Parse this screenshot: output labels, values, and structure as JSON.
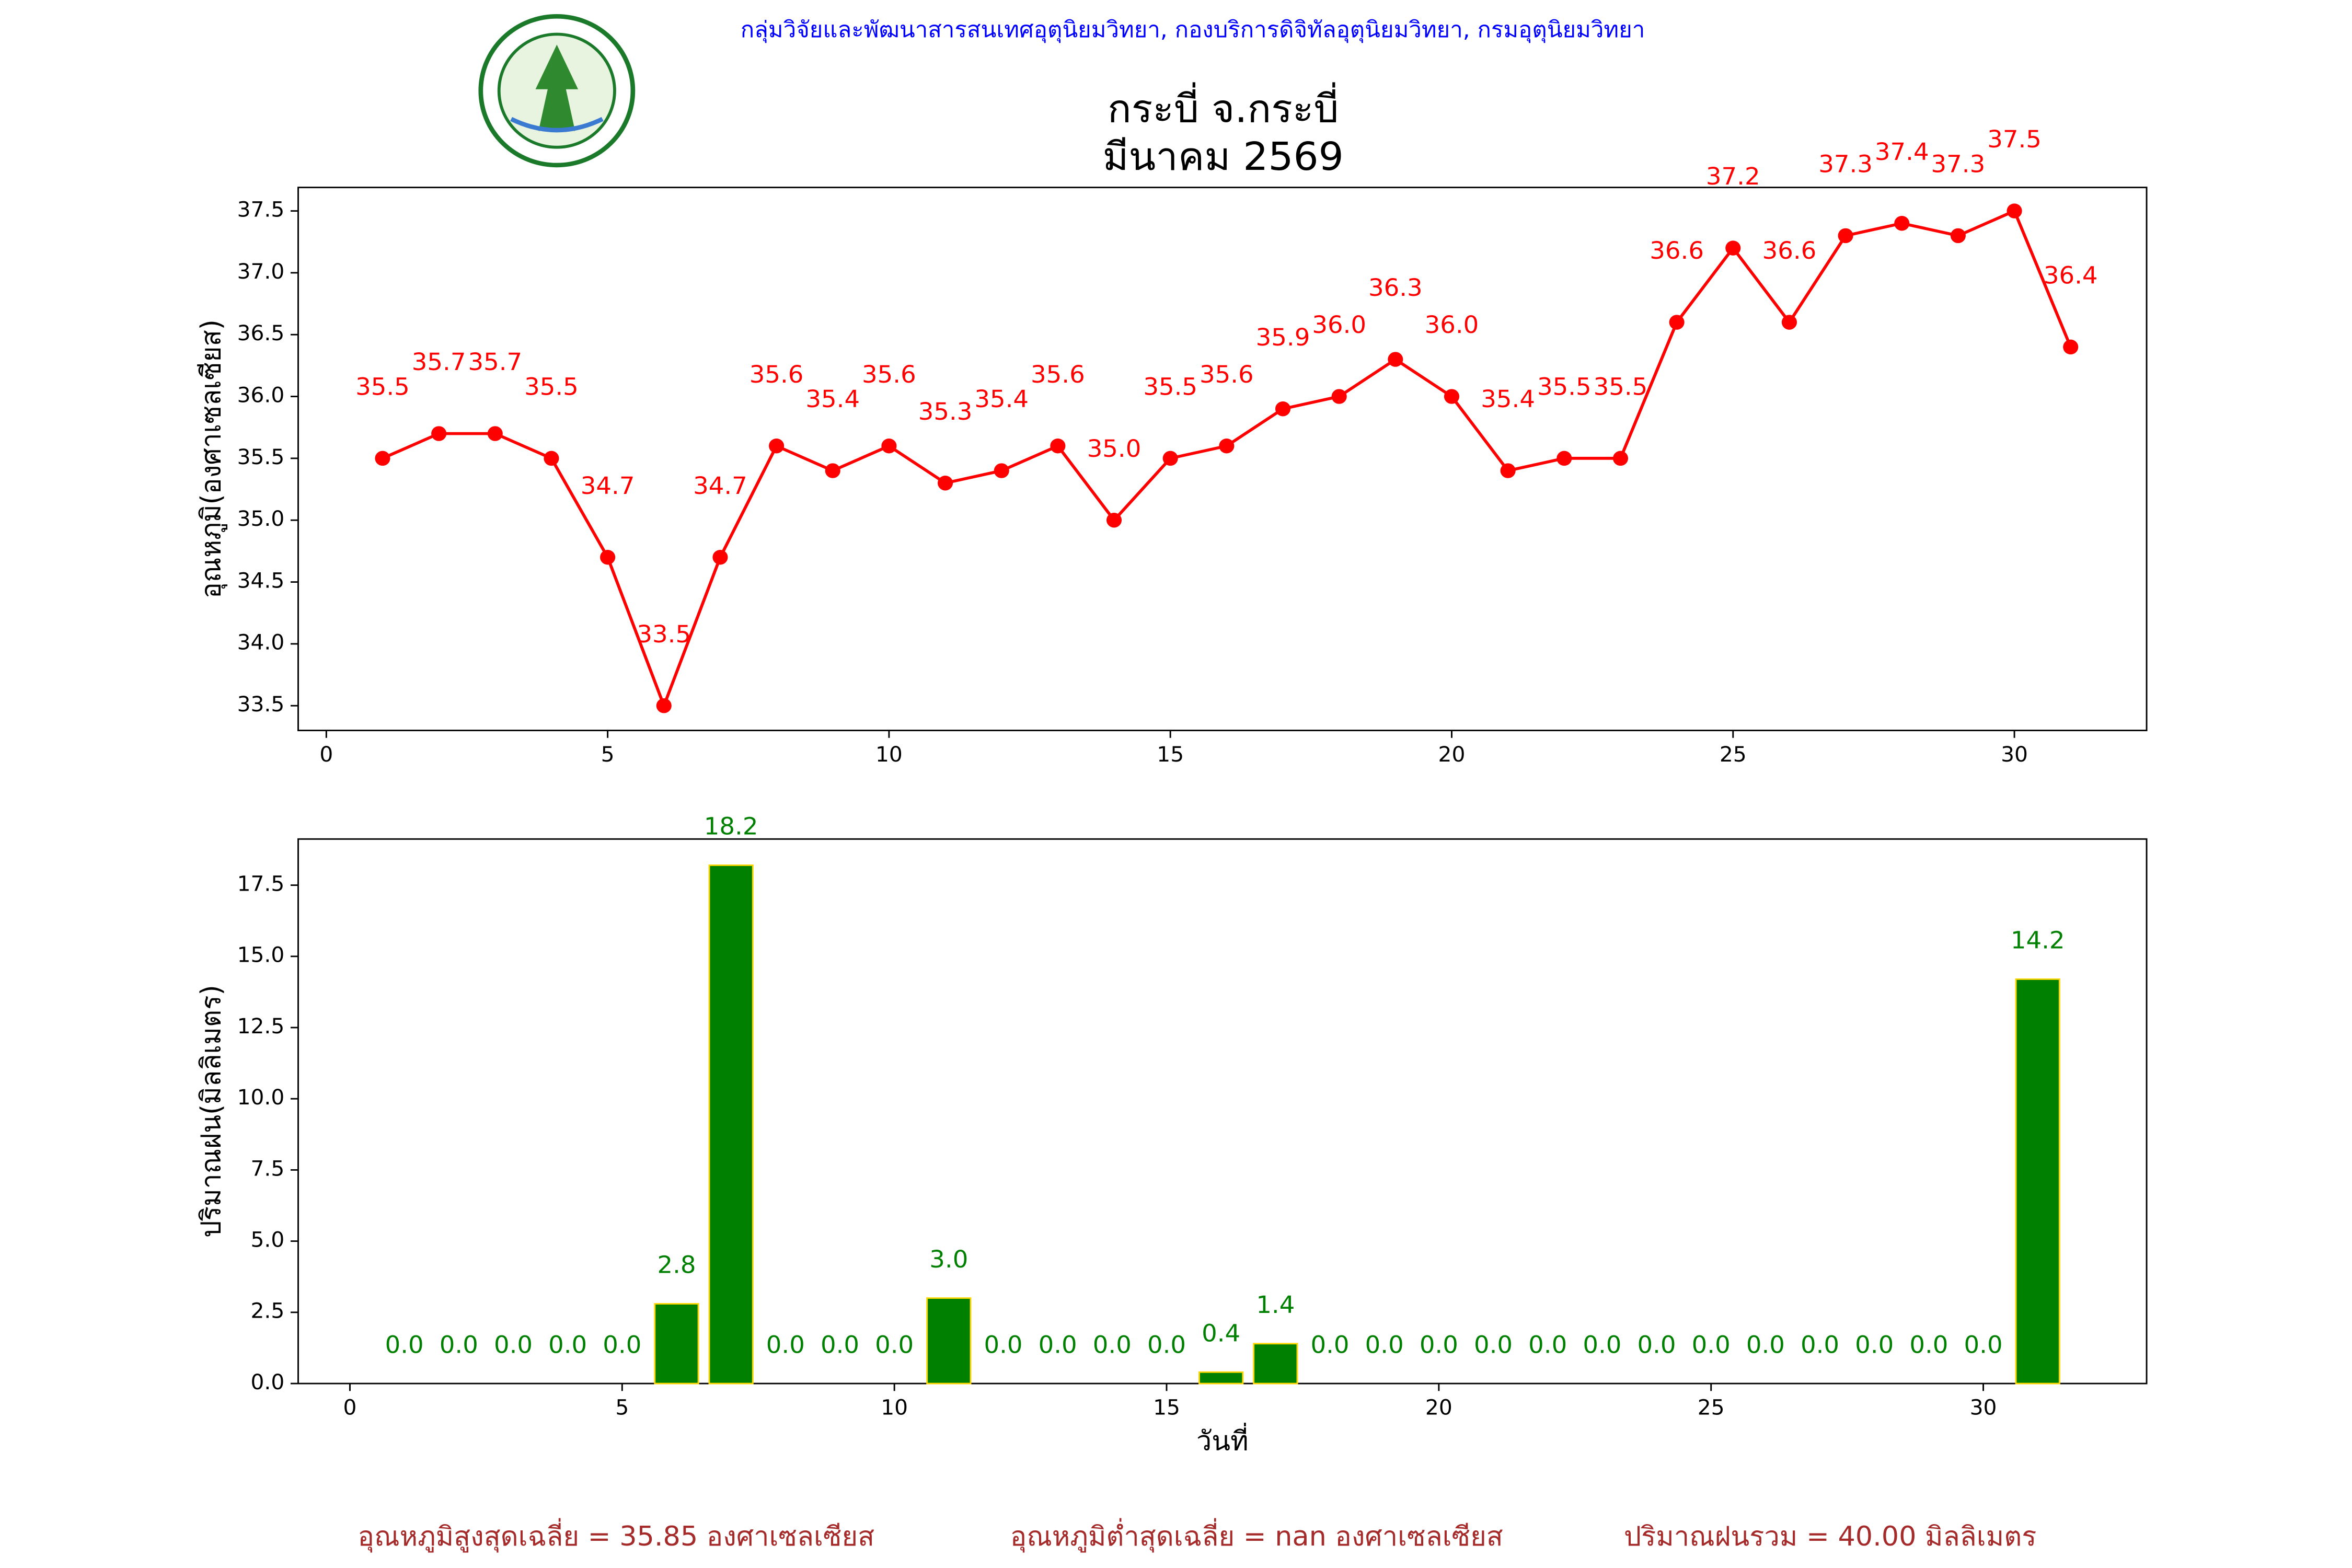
{
  "header": "กลุ่มวิจัยและพัฒนาสารสนเทศอุตุนิยมวิทยา, กองบริการดิจิทัลอุตุนิยมวิทยา, กรมอุตุนิยมวิทยา",
  "chart_data": [
    {
      "type": "line",
      "title": "กระบี่ จ.กระบี่",
      "subtitle": "มีนาคม 2569",
      "y_label": "อุณหภูมิ(องศาเซลเซียส)",
      "color": "#ff0000",
      "x": [
        1,
        2,
        3,
        4,
        5,
        6,
        7,
        8,
        9,
        10,
        11,
        12,
        13,
        14,
        15,
        16,
        17,
        18,
        19,
        20,
        21,
        22,
        23,
        24,
        25,
        26,
        27,
        28,
        29,
        30,
        31
      ],
      "values": [
        35.5,
        35.7,
        35.7,
        35.5,
        34.7,
        33.5,
        34.7,
        35.6,
        35.4,
        35.6,
        35.3,
        35.4,
        35.6,
        35.0,
        35.5,
        35.6,
        35.9,
        36.0,
        36.3,
        36.0,
        35.4,
        35.5,
        35.5,
        36.6,
        37.2,
        36.6,
        37.3,
        37.4,
        37.3,
        37.5,
        36.4
      ],
      "value_labels": [
        "35.5",
        "35.7",
        "35.7",
        "35.5",
        "34.7",
        "33.5",
        "34.7",
        "35.6",
        "35.4",
        "35.6",
        "35.3",
        "35.4",
        "35.6",
        "35.0",
        "35.5",
        "35.6",
        "35.9",
        "36.0",
        "36.3",
        "36.0",
        "35.4",
        "35.5",
        "35.5",
        "36.6",
        "37.2",
        "36.6",
        "37.3",
        "37.4",
        "37.3",
        "37.5",
        "36.4"
      ],
      "xlim": [
        -0.5,
        32.35
      ],
      "xticks": [
        0,
        5,
        10,
        15,
        20,
        25,
        30
      ],
      "ylim": [
        33.3,
        37.69
      ],
      "yticks": [
        33.5,
        {
          "value": 34,
          "label": "34.0"
        },
        34.5,
        {
          "value": 35,
          "label": "35.0"
        },
        35.5,
        {
          "value": 36,
          "label": "36.0"
        },
        36.5,
        {
          "value": 37,
          "label": "37.0"
        },
        37.5
      ]
    },
    {
      "type": "bar",
      "y_label": "ปริมาณฝน(มิลลิเมตร)",
      "x_label": "วันที่",
      "color": "#008000",
      "edge_color": "#ffd700",
      "x": [
        1,
        2,
        3,
        4,
        5,
        6,
        7,
        8,
        9,
        10,
        11,
        12,
        13,
        14,
        15,
        16,
        17,
        18,
        19,
        20,
        21,
        22,
        23,
        24,
        25,
        26,
        27,
        28,
        29,
        30,
        31
      ],
      "values": [
        0,
        0,
        0,
        0,
        0,
        2.8,
        18.2,
        0,
        0,
        0,
        3.0,
        0,
        0,
        0,
        0,
        0.4,
        1.4,
        0,
        0,
        0,
        0,
        0,
        0,
        0,
        0,
        0,
        0,
        0,
        0,
        0,
        14.2
      ],
      "value_labels": [
        "0.0",
        "0.0",
        "0.0",
        "0.0",
        "0.0",
        "2.8",
        "18.2",
        "0.0",
        "0.0",
        "0.0",
        "3.0",
        "0.0",
        "0.0",
        "0.0",
        "0.0",
        "0.4",
        "1.4",
        "0.0",
        "0.0",
        "0.0",
        "0.0",
        "0.0",
        "0.0",
        "0.0",
        "0.0",
        "0.0",
        "0.0",
        "0.0",
        "0.0",
        "0.0",
        "14.2"
      ],
      "xlim": [
        -0.95,
        33
      ],
      "xticks": [
        0,
        5,
        10,
        15,
        20,
        25,
        30
      ],
      "ylim": [
        0,
        19.12
      ],
      "yticks": [
        {
          "value": 0,
          "label": "0.0"
        },
        2.5,
        {
          "value": 5,
          "label": "5.0"
        },
        7.5,
        {
          "value": 10,
          "label": "10.0"
        },
        12.5,
        {
          "value": 15,
          "label": "15.0"
        },
        17.5
      ]
    }
  ],
  "footer": [
    "อุณหภูมิสูงสุดเฉลี่ย = 35.85 องศาเซลเซียส",
    "อุณหภูมิต่ำสุดเฉลี่ย = nan องศาเซลเซียส",
    "ปริมาณฝนรวม = 40.00 มิลลิเมตร"
  ]
}
